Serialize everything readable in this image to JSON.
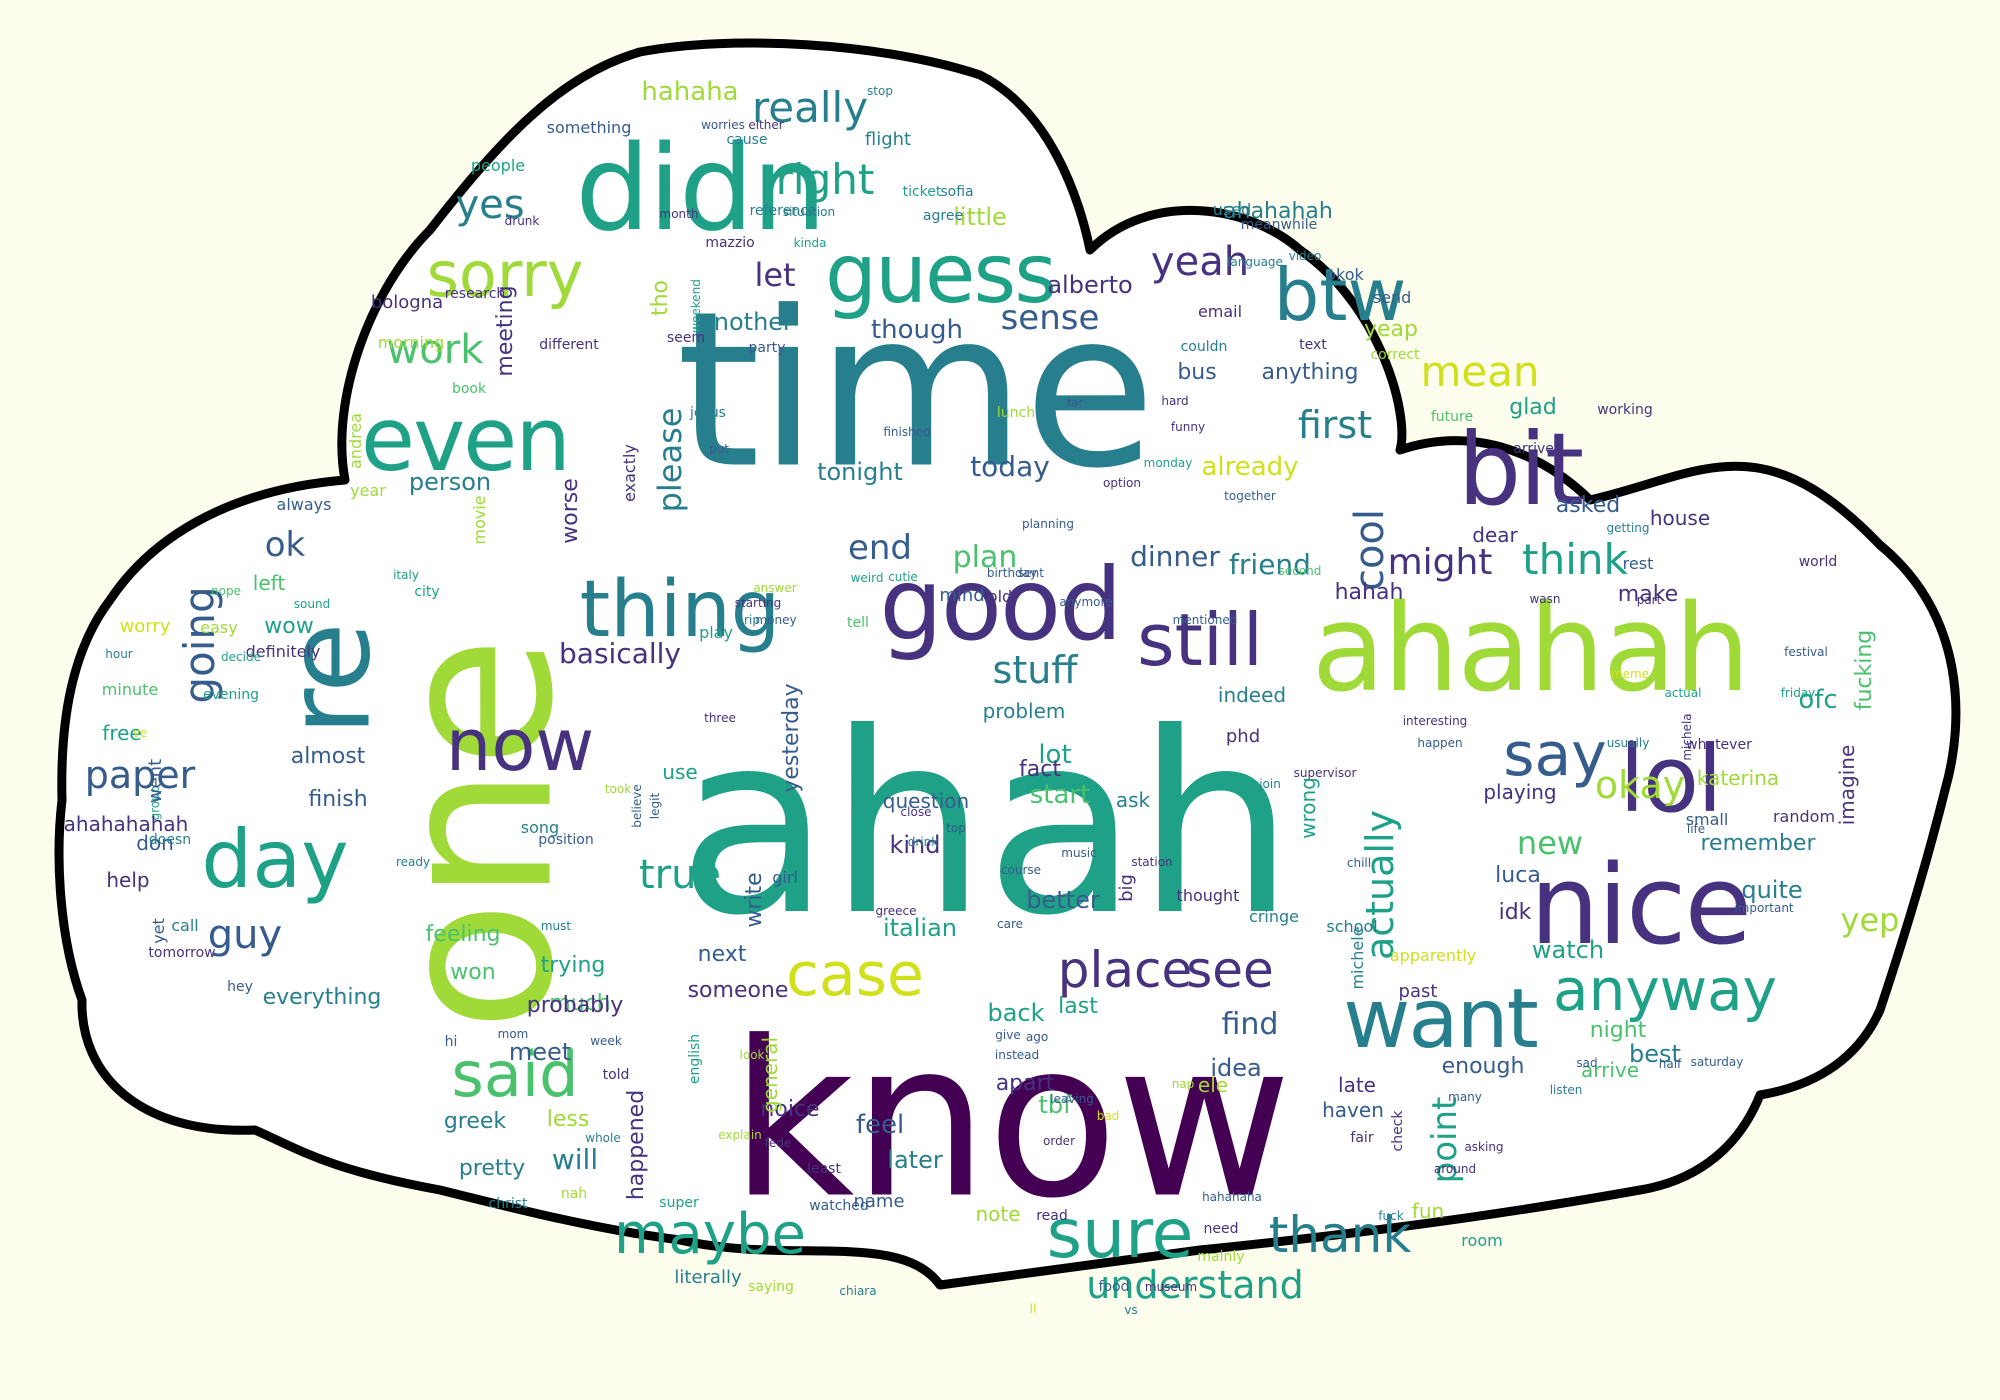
{
  "colors": {
    "background": "#fdfdee",
    "cloud_fill": "#ffffff",
    "cloud_outline": "#000000",
    "palette": [
      "#440154",
      "#46327e",
      "#365c8d",
      "#277f8e",
      "#1fa187",
      "#4ac16d",
      "#a0da39",
      "#d0e11c"
    ]
  },
  "words": [
    "time",
    "ahah",
    "know",
    "one",
    "ahahah",
    "didn",
    "nice",
    "bit",
    "lol",
    "good",
    "guess",
    "want",
    "btw",
    "even",
    "thing",
    "now",
    "sorry",
    "day",
    "still",
    "re",
    "sure",
    "say",
    "anyway",
    "case",
    "said",
    "maybe",
    "place",
    "see",
    "thank",
    "really",
    "right",
    "yes",
    "work",
    "mean",
    "yeah",
    "think",
    "first",
    "understand",
    "stuff",
    "cool",
    "okay",
    "actually",
    "paper",
    "going",
    "guy",
    "end",
    "might",
    "true",
    "point",
    "please",
    "let",
    "sense",
    "new",
    "ok",
    "plan",
    "yep",
    "basically",
    "find",
    "dinner",
    "friend",
    "today",
    "hahaha",
    "though",
    "another",
    "alberto",
    "tonight",
    "already",
    "person",
    "kind",
    "will",
    "feel",
    "later",
    "noice",
    "idea",
    "lot",
    "start",
    "back",
    "italian",
    "better",
    "fact",
    "last",
    "next",
    "someone",
    "much",
    "meet",
    "trying",
    "probably",
    "everything",
    "feeling",
    "won",
    "greek",
    "less",
    "pretty",
    "christ",
    "happened",
    "general",
    "apart",
    "tbf",
    "ele",
    "haven",
    "fair",
    "enough",
    "late",
    "arrive",
    "best",
    "night",
    "watch",
    "apparently",
    "past",
    "luca",
    "idk",
    "michele",
    "remember",
    "quite",
    "imagine",
    "fucking",
    "ofc",
    "yesterday",
    "girl",
    "write",
    "use",
    "song",
    "question",
    "problem",
    "indeed",
    "ask",
    "phd",
    "wrong",
    "big",
    "thought",
    "playing",
    "katerina",
    "small",
    "random",
    "make",
    "hahah",
    "dear",
    "wasn",
    "part",
    "world",
    "asked",
    "house",
    "getting",
    "rest",
    "glad",
    "arrived",
    "future",
    "working",
    "anything",
    "bus",
    "okok",
    "send",
    "yeap",
    "text",
    "correct",
    "email",
    "couldn",
    "far",
    "meanwhile",
    "language",
    "video",
    "ahahahah",
    "used",
    "little",
    "agree",
    "ticket",
    "sofia",
    "mazzio",
    "reference",
    "situation",
    "kinda",
    "month",
    "cause",
    "either",
    "worries",
    "flight",
    "stop",
    "something",
    "people",
    "drunk",
    "bologna",
    "research",
    "meeting",
    "different",
    "tho",
    "weekend",
    "seem",
    "party",
    "morning",
    "book",
    "andrea",
    "year",
    "always",
    "movie",
    "left",
    "wow",
    "worry",
    "hour",
    "minute",
    "free",
    "don",
    "help",
    "yet",
    "call",
    "tomorrow",
    "hey",
    "hi",
    "mom",
    "told",
    "week",
    "whole",
    "super",
    "literally",
    "saying",
    "chiara",
    "read",
    "fun",
    "room",
    "need",
    "mainly",
    "food",
    "museum",
    "note",
    "watched",
    "name",
    "least",
    "nah",
    "definitely",
    "evening",
    "decide",
    "easy",
    "nope",
    "sound",
    "city",
    "italy",
    "play",
    "rip",
    "money",
    "weird",
    "cutie",
    "mind",
    "old",
    "tell",
    "exactly",
    "jesus",
    "put",
    "worse",
    "lunch",
    "finished",
    "birthday",
    "sent",
    "anymore",
    "funny",
    "monday",
    "hard",
    "together",
    "option",
    "planning",
    "second",
    "mentioned",
    "almost",
    "group",
    "went",
    "doesn",
    "ahahahahah",
    "finish",
    "position",
    "ready",
    "must",
    "believe",
    "took",
    "legit",
    "starting",
    "answer",
    "three",
    "interesting",
    "happen",
    "supervisor",
    "join",
    "cringe",
    "school",
    "chill",
    "station",
    "music",
    "close",
    "top",
    "drink",
    "care",
    "course",
    "greece",
    "instead",
    "ago",
    "give",
    "english",
    "look",
    "order",
    "leaving",
    "bad",
    "explain",
    "fede",
    "asking",
    "around",
    "check",
    "sad",
    "half",
    "many",
    "listen",
    "saturday",
    "life",
    "important",
    "whatever",
    "michela",
    "friday",
    "festival",
    "actual",
    "usually",
    "meme",
    "hahahaha",
    "fuck",
    "nap",
    "vs",
    "ll",
    "ve"
  ]
}
